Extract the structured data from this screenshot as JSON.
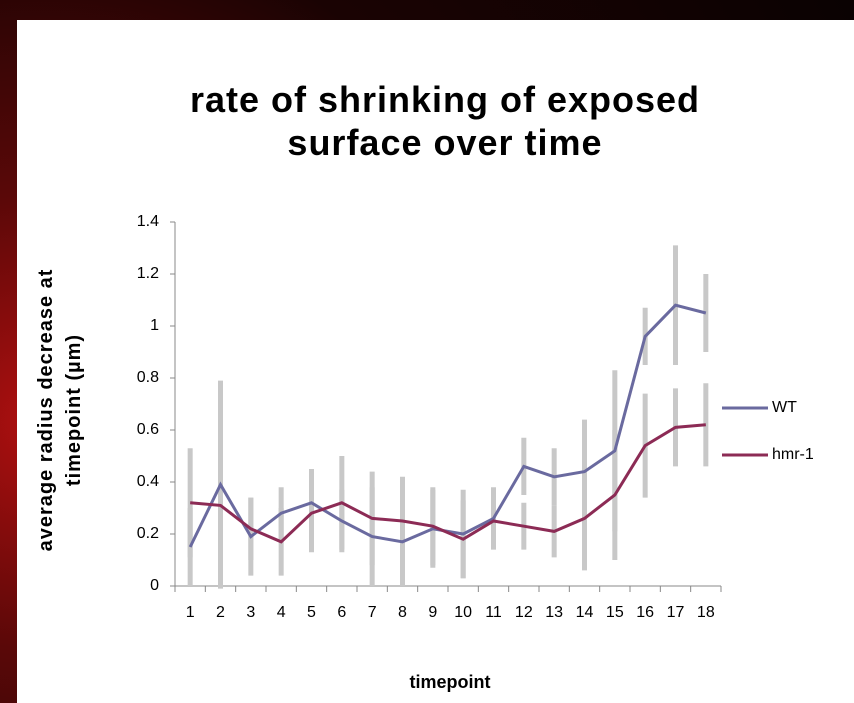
{
  "chart_data": {
    "type": "line",
    "title": "rate of shrinking of exposed surface over time",
    "x_label": "timepoint",
    "y_label": "average radius decrease at timepoint (µm)",
    "categories": [
      "1",
      "2",
      "3",
      "4",
      "5",
      "6",
      "7",
      "8",
      "9",
      "10",
      "11",
      "12",
      "13",
      "14",
      "15",
      "16",
      "17",
      "18"
    ],
    "series": [
      {
        "name": "WT",
        "color": "#6a6a9f",
        "values": [
          0.15,
          0.39,
          0.19,
          0.28,
          0.32,
          0.25,
          0.19,
          0.17,
          0.22,
          0.2,
          0.26,
          0.46,
          0.42,
          0.44,
          0.52,
          0.96,
          1.08,
          1.05
        ],
        "errors": [
          0.15,
          0.4,
          0.15,
          0.1,
          0.13,
          0.12,
          0.19,
          0.17,
          0.15,
          0.17,
          0.12,
          0.11,
          0.11,
          0.2,
          0.31,
          0.11,
          0.23,
          0.15
        ]
      },
      {
        "name": "hmr-1",
        "color": "#8c2b55",
        "values": [
          0.32,
          0.31,
          0.22,
          0.17,
          0.28,
          0.32,
          0.26,
          0.25,
          0.23,
          0.18,
          0.25,
          0.23,
          0.21,
          0.26,
          0.35,
          0.54,
          0.61,
          0.62
        ],
        "errors": [
          0.21,
          0.2,
          0.12,
          0.13,
          0.15,
          0.18,
          0.18,
          0.17,
          0.15,
          0.15,
          0.1,
          0.09,
          0.1,
          0.2,
          0.25,
          0.2,
          0.15,
          0.16
        ]
      }
    ],
    "error_bar_color": "#c8c8c8",
    "ylim": [
      0,
      1.4
    ],
    "yticks": [
      0,
      0.2,
      0.4,
      0.6,
      0.8,
      1,
      1.2,
      1.4
    ],
    "legend": "right"
  }
}
